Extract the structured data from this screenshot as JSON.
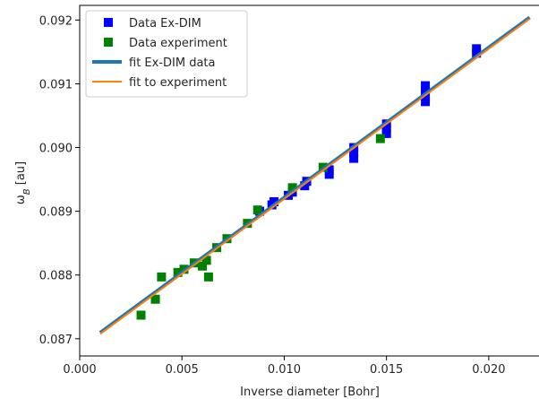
{
  "chart_data": {
    "type": "scatter",
    "xlabel": "Inverse diameter [Bohr]",
    "ylabel": "ω_B [au]",
    "xlim": [
      0.0,
      0.0225
    ],
    "ylim": [
      0.08673,
      0.09223
    ],
    "xticks": [
      0.0,
      0.005,
      0.01,
      0.015,
      0.02
    ],
    "xtick_labels": [
      "0.000",
      "0.005",
      "0.010",
      "0.015",
      "0.020"
    ],
    "yticks": [
      0.087,
      0.088,
      0.089,
      0.09,
      0.091,
      0.092
    ],
    "ytick_labels": [
      "0.087",
      "0.088",
      "0.089",
      "0.090",
      "0.091",
      "0.092"
    ],
    "legend_position": "upper-left",
    "grid": false,
    "series": [
      {
        "name": "Data Ex-DIM",
        "kind": "marker",
        "color": "#0000ff",
        "points": [
          {
            "x": 0.0088,
            "y": 0.089
          },
          {
            "x": 0.0094,
            "y": 0.0891
          },
          {
            "x": 0.0095,
            "y": 0.08915
          },
          {
            "x": 0.0102,
            "y": 0.08925
          },
          {
            "x": 0.0104,
            "y": 0.0893
          },
          {
            "x": 0.011,
            "y": 0.0894
          },
          {
            "x": 0.0111,
            "y": 0.08947
          },
          {
            "x": 0.0122,
            "y": 0.08958
          },
          {
            "x": 0.0122,
            "y": 0.08965
          },
          {
            "x": 0.0134,
            "y": 0.08983
          },
          {
            "x": 0.0134,
            "y": 0.08992
          },
          {
            "x": 0.0134,
            "y": 0.09
          },
          {
            "x": 0.015,
            "y": 0.09022
          },
          {
            "x": 0.015,
            "y": 0.0903
          },
          {
            "x": 0.015,
            "y": 0.09037
          },
          {
            "x": 0.0169,
            "y": 0.09072
          },
          {
            "x": 0.0169,
            "y": 0.0908
          },
          {
            "x": 0.0169,
            "y": 0.0909
          },
          {
            "x": 0.0169,
            "y": 0.09097
          },
          {
            "x": 0.0194,
            "y": 0.09148
          },
          {
            "x": 0.0194,
            "y": 0.09155
          }
        ]
      },
      {
        "name": "Data experiment",
        "kind": "marker",
        "color": "#008000",
        "points": [
          {
            "x": 0.003,
            "y": 0.08737
          },
          {
            "x": 0.0037,
            "y": 0.08762
          },
          {
            "x": 0.004,
            "y": 0.08797
          },
          {
            "x": 0.0048,
            "y": 0.08804
          },
          {
            "x": 0.0051,
            "y": 0.08809
          },
          {
            "x": 0.0056,
            "y": 0.08819
          },
          {
            "x": 0.006,
            "y": 0.08814
          },
          {
            "x": 0.0062,
            "y": 0.08823
          },
          {
            "x": 0.0063,
            "y": 0.08797
          },
          {
            "x": 0.0067,
            "y": 0.08843
          },
          {
            "x": 0.0072,
            "y": 0.08857
          },
          {
            "x": 0.0082,
            "y": 0.08881
          },
          {
            "x": 0.0087,
            "y": 0.08902
          },
          {
            "x": 0.0104,
            "y": 0.08937
          },
          {
            "x": 0.0119,
            "y": 0.08969
          },
          {
            "x": 0.0147,
            "y": 0.09014
          }
        ]
      },
      {
        "name": "fit Ex-DIM data",
        "kind": "line",
        "color": "#1f77b4",
        "x": [
          0.001,
          0.022
        ],
        "y": [
          0.087095,
          0.09204
        ]
      },
      {
        "name": "fit to experiment",
        "kind": "line",
        "color": "#ff7f0e",
        "x": [
          0.001,
          0.022
        ],
        "y": [
          0.087075,
          0.09202
        ]
      }
    ]
  }
}
